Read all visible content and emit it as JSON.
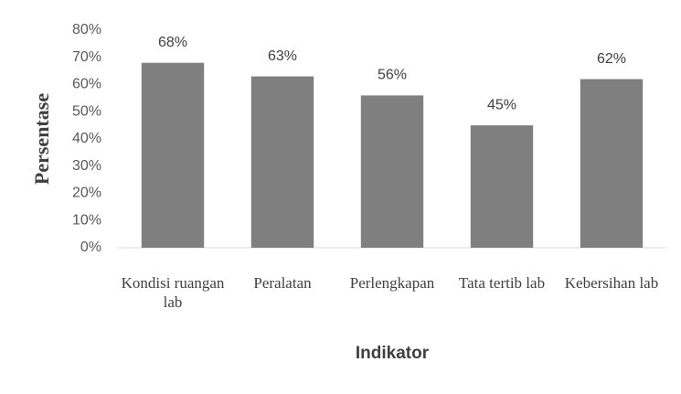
{
  "chart_data": {
    "type": "bar",
    "x_label": "Indikator",
    "y_label": "Persentase",
    "categories": [
      "Kondisi ruangan lab",
      "Peralatan",
      "Perlengkapan",
      "Tata tertib lab",
      "Kebersihan lab"
    ],
    "values": [
      68,
      63,
      56,
      45,
      62
    ],
    "value_labels": [
      "68%",
      "63%",
      "56%",
      "45%",
      "62%"
    ],
    "color": "#7f7f7f",
    "ylim": [
      0,
      80
    ],
    "yticks": [
      {
        "value": 0,
        "label": "0%"
      },
      {
        "value": 10,
        "label": "10%"
      },
      {
        "value": 20,
        "label": "20%"
      },
      {
        "value": 30,
        "label": "30%"
      },
      {
        "value": 40,
        "label": "40%"
      },
      {
        "value": 50,
        "label": "50%"
      },
      {
        "value": 60,
        "label": "60%"
      },
      {
        "value": 70,
        "label": "70%"
      },
      {
        "value": 80,
        "label": "80%"
      }
    ],
    "grid": false
  }
}
